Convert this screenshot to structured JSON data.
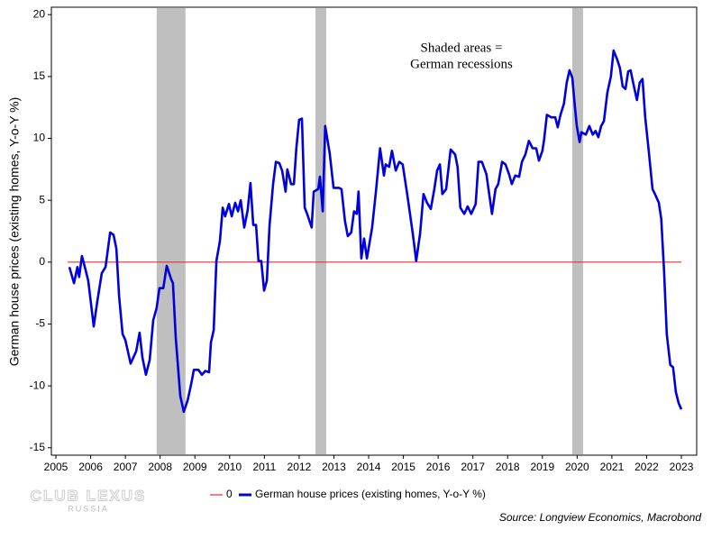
{
  "chart_data": {
    "type": "line",
    "y_label": "German house prices (existing homes, Y-o-Y %)",
    "annotation": [
      "Shaded areas =",
      "German recessions"
    ],
    "source": "Source: Longview Economics, Macrobond",
    "watermark": [
      "CLUB LEXUS",
      "RUSSIA"
    ],
    "xlim": [
      2004.87,
      2023.44
    ],
    "xticks": [
      2005,
      2006,
      2007,
      2008,
      2009,
      2010,
      2011,
      2012,
      2013,
      2014,
      2015,
      2016,
      2017,
      2018,
      2019,
      2020,
      2021,
      2022,
      2023
    ],
    "ylim": [
      -15.6,
      20.6
    ],
    "yticks": [
      -15,
      -10,
      -5,
      0,
      5,
      10,
      15,
      20
    ],
    "recessions": [
      [
        2007.9,
        2008.73
      ],
      [
        2012.47,
        2012.78
      ],
      [
        2019.86,
        2020.17
      ]
    ],
    "recession_color": "#bfbfbf",
    "reference": {
      "name": "0",
      "color": "#e03030",
      "value": 0
    },
    "x": [
      2005.39,
      2005.52,
      2005.62,
      2005.67,
      2005.75,
      2005.86,
      2005.93,
      2006.09,
      2006.19,
      2006.32,
      2006.43,
      2006.56,
      2006.66,
      2006.74,
      2006.82,
      2006.92,
      2007.0,
      2007.15,
      2007.31,
      2007.41,
      2007.49,
      2007.59,
      2007.7,
      2007.8,
      2007.9,
      2007.98,
      2008.09,
      2008.19,
      2008.32,
      2008.37,
      2008.45,
      2008.58,
      2008.68,
      2008.79,
      2008.89,
      2008.97,
      2009.1,
      2009.2,
      2009.3,
      2009.41,
      2009.46,
      2009.54,
      2009.62,
      2009.72,
      2009.8,
      2009.87,
      2009.98,
      2010.06,
      2010.16,
      2010.24,
      2010.32,
      2010.42,
      2010.52,
      2010.6,
      2010.68,
      2010.76,
      2010.83,
      2010.91,
      2010.99,
      2011.07,
      2011.15,
      2011.25,
      2011.33,
      2011.43,
      2011.51,
      2011.61,
      2011.66,
      2011.77,
      2011.85,
      2011.92,
      2012.0,
      2012.08,
      2012.16,
      2012.23,
      2012.36,
      2012.42,
      2012.55,
      2012.6,
      2012.68,
      2012.75,
      2012.88,
      2012.99,
      2013.14,
      2013.22,
      2013.32,
      2013.4,
      2013.5,
      2013.58,
      2013.66,
      2013.71,
      2013.79,
      2013.87,
      2013.95,
      2014.1,
      2014.21,
      2014.33,
      2014.44,
      2014.49,
      2014.59,
      2014.67,
      2014.78,
      2014.88,
      2014.98,
      2015.11,
      2015.27,
      2015.37,
      2015.48,
      2015.58,
      2015.68,
      2015.79,
      2015.89,
      2015.97,
      2016.05,
      2016.12,
      2016.23,
      2016.36,
      2016.49,
      2016.56,
      2016.64,
      2016.75,
      2016.85,
      2016.95,
      2017.08,
      2017.16,
      2017.26,
      2017.39,
      2017.55,
      2017.65,
      2017.73,
      2017.84,
      2017.94,
      2018.04,
      2018.12,
      2018.22,
      2018.33,
      2018.41,
      2018.51,
      2018.61,
      2018.72,
      2018.82,
      2018.9,
      2019.0,
      2019.05,
      2019.13,
      2019.26,
      2019.37,
      2019.44,
      2019.52,
      2019.62,
      2019.7,
      2019.78,
      2019.86,
      2019.94,
      2019.99,
      2020.07,
      2020.12,
      2020.25,
      2020.35,
      2020.45,
      2020.53,
      2020.61,
      2020.69,
      2020.77,
      2020.87,
      2020.97,
      2021.05,
      2021.15,
      2021.23,
      2021.31,
      2021.39,
      2021.47,
      2021.54,
      2021.62,
      2021.72,
      2021.8,
      2021.88,
      2021.96,
      2022.06,
      2022.17,
      2022.24,
      2022.35,
      2022.42,
      2022.5,
      2022.58,
      2022.68,
      2022.76,
      2022.84,
      2022.92,
      2023.0
    ],
    "series": [
      {
        "name": "German house prices (existing homes, Y-o-Y %)",
        "color": "#0000dd",
        "values": [
          -0.4,
          -1.7,
          -0.4,
          -1.2,
          0.5,
          -0.7,
          -1.5,
          -5.2,
          -3.2,
          -0.9,
          -0.4,
          2.4,
          2.2,
          1.1,
          -2.8,
          -5.8,
          -6.3,
          -8.2,
          -7.2,
          -5.7,
          -7.7,
          -9.1,
          -7.9,
          -4.7,
          -3.7,
          -2.1,
          -2.1,
          -0.3,
          -1.4,
          -1.7,
          -6.1,
          -10.8,
          -12.1,
          -11.2,
          -9.9,
          -8.7,
          -8.7,
          -9.1,
          -8.8,
          -8.9,
          -6.5,
          -5.5,
          0.1,
          1.7,
          4.4,
          3.7,
          4.7,
          3.7,
          4.8,
          4.1,
          5.0,
          2.8,
          4.2,
          6.4,
          3.0,
          3.0,
          0.1,
          0.1,
          -2.3,
          -1.5,
          3.0,
          6.3,
          8.1,
          8.0,
          7.4,
          5.7,
          7.5,
          6.3,
          6.3,
          9.2,
          11.5,
          11.6,
          4.4,
          3.9,
          2.8,
          5.7,
          5.9,
          6.9,
          4.1,
          11.0,
          8.8,
          6.0,
          6.0,
          5.9,
          3.3,
          2.1,
          2.4,
          4.1,
          3.9,
          5.7,
          0.3,
          1.9,
          0.3,
          2.8,
          5.7,
          9.2,
          7.0,
          7.9,
          7.7,
          9.0,
          7.4,
          8.1,
          7.9,
          5.5,
          2.3,
          0.1,
          2.3,
          5.5,
          4.8,
          4.3,
          5.9,
          7.4,
          7.9,
          5.5,
          5.9,
          9.1,
          8.7,
          7.7,
          4.4,
          3.9,
          4.5,
          3.9,
          4.7,
          8.1,
          8.1,
          7.1,
          3.9,
          5.9,
          6.3,
          8.1,
          7.9,
          7.1,
          6.3,
          7.0,
          6.9,
          8.1,
          8.7,
          9.8,
          9.2,
          9.2,
          8.2,
          9.0,
          9.9,
          11.9,
          11.7,
          11.7,
          10.9,
          11.9,
          12.8,
          14.5,
          15.5,
          14.9,
          12.4,
          11.0,
          9.7,
          10.5,
          10.3,
          11.0,
          10.3,
          10.6,
          10.1,
          11.0,
          11.4,
          13.7,
          15.0,
          17.1,
          16.4,
          15.7,
          14.2,
          14.0,
          15.4,
          15.5,
          14.4,
          13.1,
          14.5,
          14.8,
          11.7,
          9.0,
          5.9,
          5.5,
          4.8,
          3.5,
          -0.7,
          -5.8,
          -8.3,
          -8.5,
          -10.5,
          -11.4,
          -11.9
        ]
      }
    ]
  }
}
